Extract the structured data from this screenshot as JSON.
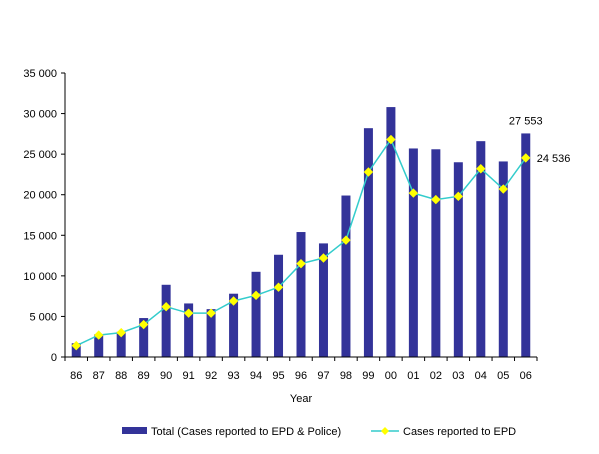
{
  "chart_data": {
    "type": "bar",
    "xlabel": "Year",
    "ylabel": "",
    "ylim": [
      0,
      35000
    ],
    "yticks": [
      0,
      5000,
      10000,
      15000,
      20000,
      25000,
      30000,
      35000
    ],
    "ytick_labels": [
      "0",
      "5 000",
      "10 000",
      "15 000",
      "20 000",
      "25 000",
      "30 000",
      "35 000"
    ],
    "categories": [
      "86",
      "87",
      "88",
      "89",
      "90",
      "91",
      "92",
      "93",
      "94",
      "95",
      "96",
      "97",
      "98",
      "99",
      "00",
      "01",
      "02",
      "03",
      "04",
      "05",
      "06"
    ],
    "series": [
      {
        "name": "Total (Cases reported to EPD & Police)",
        "type": "bar",
        "color": "#333399",
        "values": [
          1700,
          2800,
          3100,
          4800,
          8900,
          6600,
          5900,
          7800,
          10500,
          12600,
          15400,
          14000,
          19900,
          28200,
          30800,
          25700,
          25600,
          24000,
          26600,
          24100,
          27553
        ]
      },
      {
        "name": "Cases reported to EPD",
        "type": "line",
        "color": "#33CCCC",
        "marker_color": "#FFFF00",
        "values": [
          1400,
          2700,
          3000,
          4000,
          6200,
          5400,
          5400,
          6900,
          7600,
          8600,
          11500,
          12200,
          14400,
          22800,
          26800,
          20200,
          19400,
          19800,
          23200,
          20700,
          24536
        ]
      }
    ],
    "annotations": [
      {
        "text": "27 553",
        "series": 0,
        "index": 20
      },
      {
        "text": "24 536",
        "series": 1,
        "index": 20
      }
    ],
    "legend": "bottom",
    "grid": false
  }
}
